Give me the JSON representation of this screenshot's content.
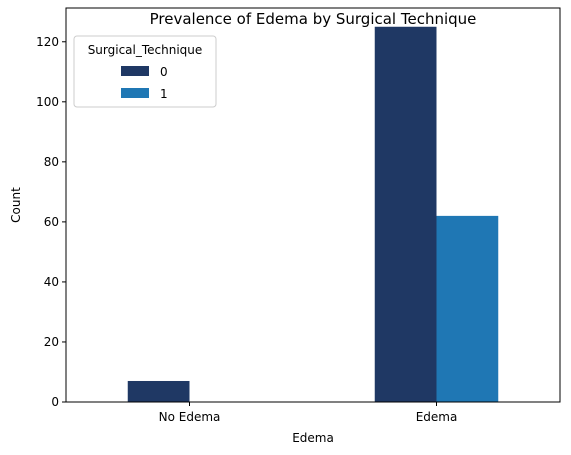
{
  "chart_data": {
    "type": "bar",
    "title": "Prevalence of Edema by Surgical Technique",
    "xlabel": "Edema",
    "ylabel": "Count",
    "categories": [
      "No Edema",
      "Edema"
    ],
    "series": [
      {
        "name": "0",
        "values": [
          7,
          125
        ],
        "color": "#1f3864"
      },
      {
        "name": "1",
        "values": [
          0,
          62
        ],
        "color": "#1f77b4"
      }
    ],
    "ylim": [
      0,
      131.25
    ],
    "yticks": [
      0,
      20,
      40,
      60,
      80,
      100,
      120
    ],
    "legend": {
      "title": "Surgical_Technique",
      "placement": "top-left"
    },
    "grid": false
  }
}
